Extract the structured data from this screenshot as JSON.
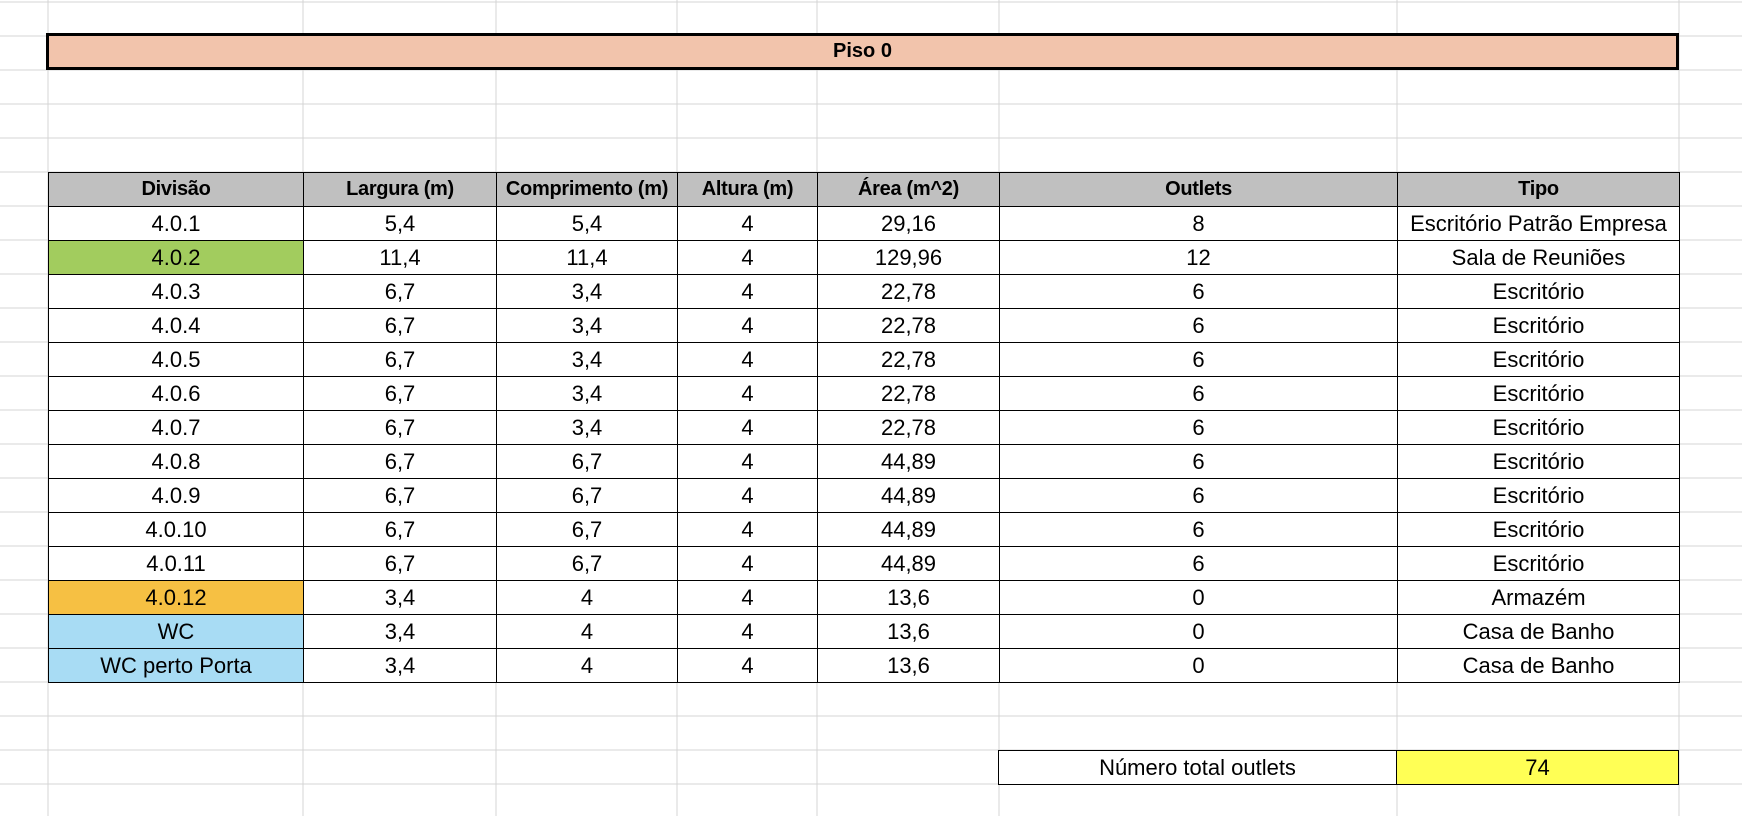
{
  "sheet": {
    "title": "Piso 0",
    "headers": [
      "Divisão",
      "Largura (m)",
      "Comprimento (m)",
      "Altura (m)",
      "Área (m^2)",
      "Outlets",
      "Tipo"
    ],
    "rows": [
      {
        "cells": [
          "4.0.1",
          "5,4",
          "5,4",
          "4",
          "29,16",
          "8",
          "Escritório Patrão Empresa"
        ],
        "fill": ""
      },
      {
        "cells": [
          "4.0.2",
          "11,4",
          "11,4",
          "4",
          "129,96",
          "12",
          "Sala de Reuniões"
        ],
        "fill": "#a2cc5e"
      },
      {
        "cells": [
          "4.0.3",
          "6,7",
          "3,4",
          "4",
          "22,78",
          "6",
          "Escritório"
        ],
        "fill": ""
      },
      {
        "cells": [
          "4.0.4",
          "6,7",
          "3,4",
          "4",
          "22,78",
          "6",
          "Escritório"
        ],
        "fill": ""
      },
      {
        "cells": [
          "4.0.5",
          "6,7",
          "3,4",
          "4",
          "22,78",
          "6",
          "Escritório"
        ],
        "fill": ""
      },
      {
        "cells": [
          "4.0.6",
          "6,7",
          "3,4",
          "4",
          "22,78",
          "6",
          "Escritório"
        ],
        "fill": ""
      },
      {
        "cells": [
          "4.0.7",
          "6,7",
          "3,4",
          "4",
          "22,78",
          "6",
          "Escritório"
        ],
        "fill": ""
      },
      {
        "cells": [
          "4.0.8",
          "6,7",
          "6,7",
          "4",
          "44,89",
          "6",
          "Escritório"
        ],
        "fill": ""
      },
      {
        "cells": [
          "4.0.9",
          "6,7",
          "6,7",
          "4",
          "44,89",
          "6",
          "Escritório"
        ],
        "fill": ""
      },
      {
        "cells": [
          "4.0.10",
          "6,7",
          "6,7",
          "4",
          "44,89",
          "6",
          "Escritório"
        ],
        "fill": ""
      },
      {
        "cells": [
          "4.0.11",
          "6,7",
          "6,7",
          "4",
          "44,89",
          "6",
          "Escritório"
        ],
        "fill": ""
      },
      {
        "cells": [
          "4.0.12",
          "3,4",
          "4",
          "4",
          "13,6",
          "0",
          "Armazém"
        ],
        "fill": "#f6c043"
      },
      {
        "cells": [
          "WC",
          "3,4",
          "4",
          "4",
          "13,6",
          "0",
          "Casa de Banho"
        ],
        "fill": "#a8dcf4"
      },
      {
        "cells": [
          "WC perto Porta",
          "3,4",
          "4",
          "4",
          "13,6",
          "0",
          "Casa de Banho"
        ],
        "fill": "#a8dcf4"
      }
    ],
    "total_label": "Número total outlets",
    "total_value": "74",
    "total_fill": "#ffff55"
  }
}
